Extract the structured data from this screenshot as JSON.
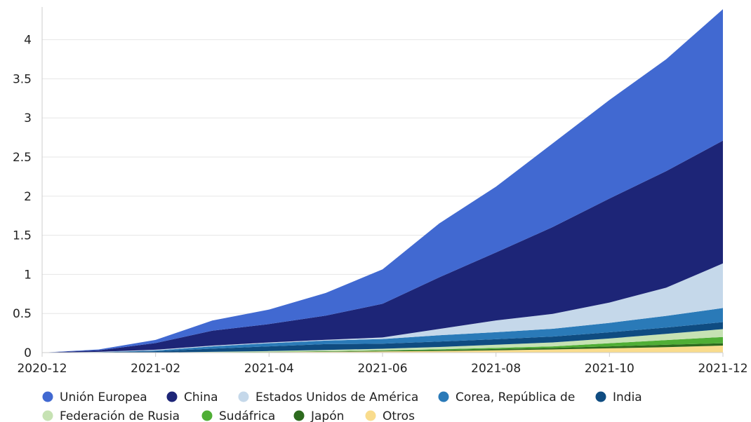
{
  "chart_data": {
    "type": "area",
    "stacked": true,
    "x": [
      "2020-12",
      "2021-01",
      "2021-02",
      "2021-03",
      "2021-04",
      "2021-05",
      "2021-06",
      "2021-07",
      "2021-08",
      "2021-09",
      "2021-10",
      "2021-11",
      "2021-12"
    ],
    "x_tick_labels": [
      "2020-12",
      "2021-02",
      "2021-04",
      "2021-06",
      "2021-08",
      "2021-10",
      "2021-12"
    ],
    "y_tick_labels": [
      "0",
      "0.5",
      "1",
      "1.5",
      "2",
      "2.5",
      "3",
      "3.5",
      "4"
    ],
    "ylim": [
      0,
      4.4
    ],
    "grid": "horizontal",
    "legend_position": "bottom-left",
    "title": "",
    "xlabel": "",
    "ylabel": "",
    "series": [
      {
        "name": "Otros",
        "color": "#f9dc8d",
        "values": [
          0,
          0,
          0,
          0.003,
          0.006,
          0.01,
          0.015,
          0.02,
          0.03,
          0.04,
          0.055,
          0.07,
          0.09
        ]
      },
      {
        "name": "Japón",
        "color": "#2d6a1e",
        "values": [
          0,
          0,
          0,
          0.001,
          0.002,
          0.004,
          0.008,
          0.012,
          0.016,
          0.02,
          0.025,
          0.03,
          0.03
        ]
      },
      {
        "name": "Sudáfrica",
        "color": "#4fae35",
        "values": [
          0,
          0,
          0,
          0.001,
          0.002,
          0.004,
          0.006,
          0.01,
          0.015,
          0.02,
          0.04,
          0.06,
          0.08
        ]
      },
      {
        "name": "Federación de Rusia",
        "color": "#c6e2b3",
        "values": [
          0,
          0,
          0.002,
          0.005,
          0.01,
          0.015,
          0.02,
          0.03,
          0.04,
          0.05,
          0.06,
          0.08,
          0.1
        ]
      },
      {
        "name": "India",
        "color": "#0f4c81",
        "values": [
          0,
          0.005,
          0.015,
          0.04,
          0.06,
          0.075,
          0.065,
          0.07,
          0.07,
          0.075,
          0.08,
          0.08,
          0.09
        ]
      },
      {
        "name": "Corea, República de",
        "color": "#2a7ab8",
        "values": [
          0,
          0.002,
          0.01,
          0.03,
          0.04,
          0.045,
          0.06,
          0.08,
          0.09,
          0.1,
          0.12,
          0.15,
          0.18
        ]
      },
      {
        "name": "Estados Unidos de América",
        "color": "#c5d8ea",
        "values": [
          0,
          0.003,
          0.01,
          0.01,
          0.01,
          0.01,
          0.02,
          0.08,
          0.15,
          0.19,
          0.26,
          0.36,
          0.57
        ]
      },
      {
        "name": "China",
        "color": "#1d2577",
        "values": [
          0,
          0.02,
          0.085,
          0.19,
          0.235,
          0.31,
          0.43,
          0.66,
          0.87,
          1.11,
          1.33,
          1.49,
          1.57
        ]
      },
      {
        "name": "Unión Europea",
        "color": "#4169d1",
        "values": [
          0,
          0.01,
          0.04,
          0.13,
          0.185,
          0.29,
          0.44,
          0.69,
          0.84,
          1.07,
          1.26,
          1.43,
          1.68
        ]
      }
    ],
    "legend_order": [
      "Unión Europea",
      "China",
      "Estados Unidos de América",
      "Corea, República de",
      "India",
      "Federación de Rusia",
      "Sudáfrica",
      "Japón",
      "Otros"
    ]
  }
}
